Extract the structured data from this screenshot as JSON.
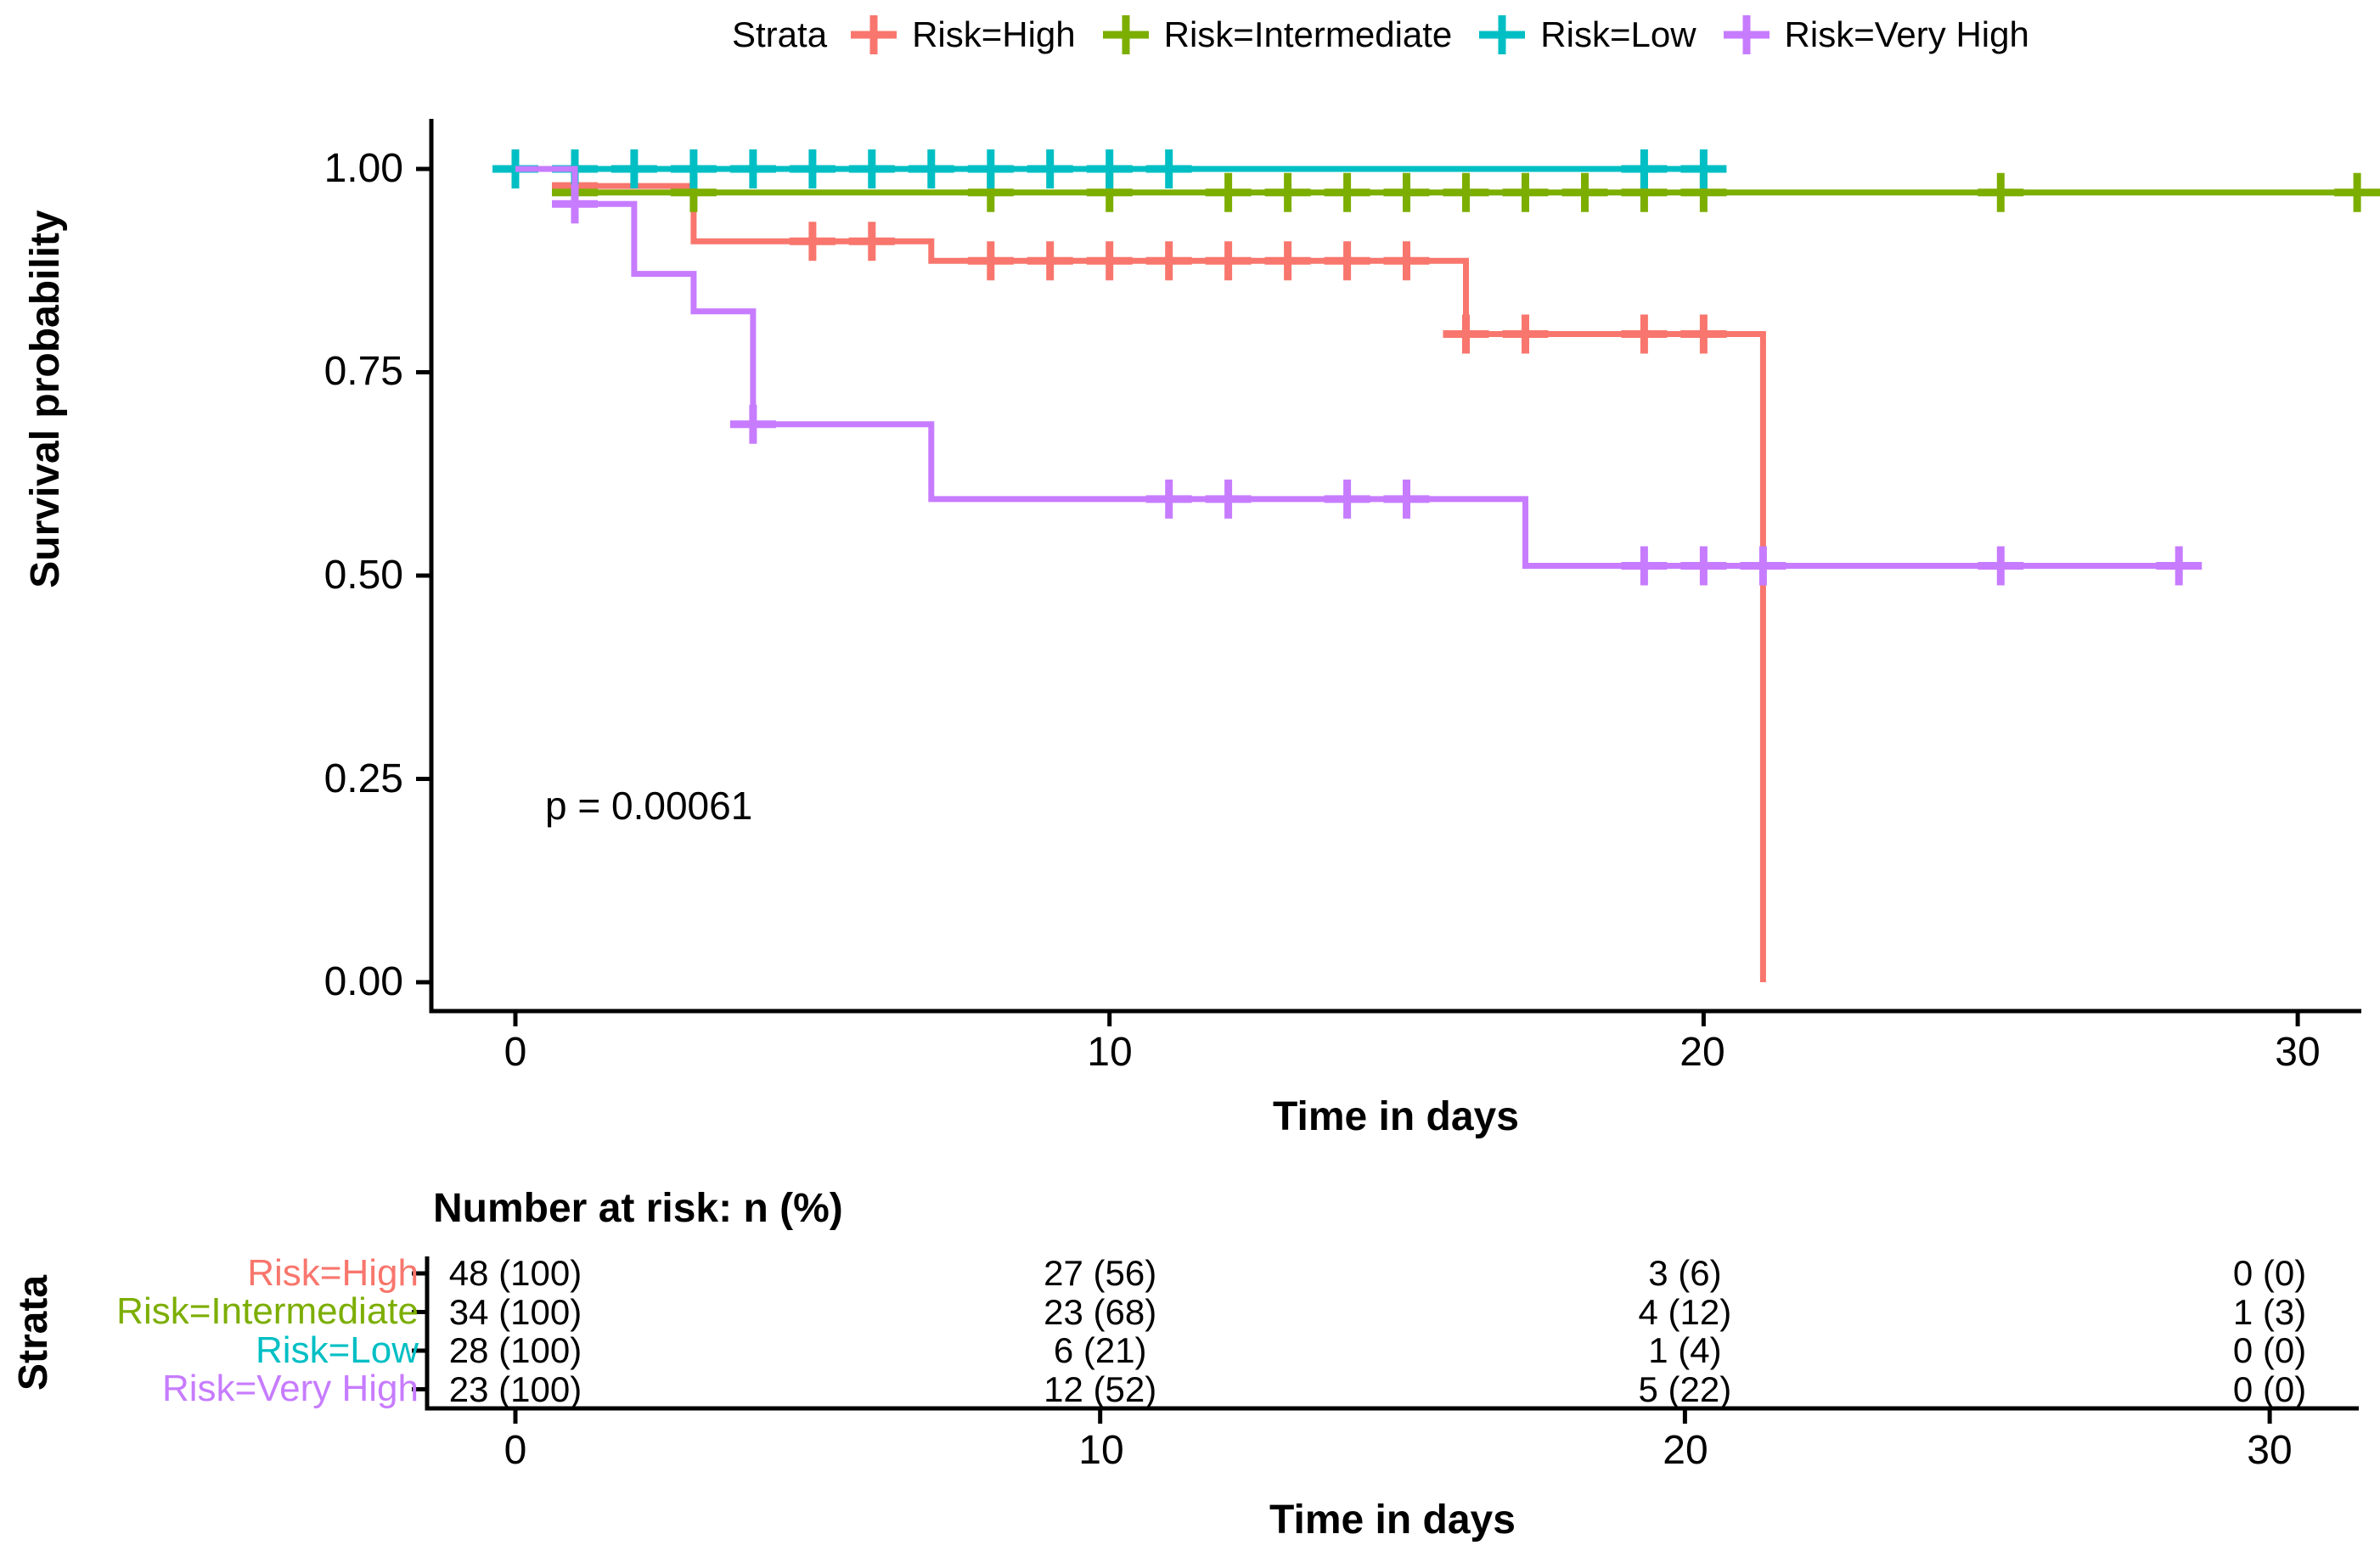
{
  "chart_data": {
    "type": "line",
    "subtype": "kaplan-meier-step-curves",
    "title": "",
    "xlabel": "Time in days",
    "ylabel": "Survival probability",
    "xlim": [
      0,
      31
    ],
    "ylim": [
      0.0,
      1.0
    ],
    "grid": false,
    "legend_position": "top",
    "legend_title": "Strata",
    "p_value": 0.00061,
    "p_value_label": "p = 0.00061",
    "x_ticks": [
      0,
      10,
      20,
      30
    ],
    "x_tick_labels": [
      "0",
      "10",
      "20",
      "30"
    ],
    "y_ticks": [
      1.0,
      0.75,
      0.5,
      0.25,
      0.0
    ],
    "y_tick_labels": [
      "1.00",
      "0.75",
      "0.50",
      "0.25",
      "0.00"
    ],
    "series": [
      {
        "name": "Risk=High",
        "color": "#F8766D",
        "steps": [
          [
            0,
            1.0
          ],
          [
            1,
            0.979
          ],
          [
            3,
            0.911
          ],
          [
            7,
            0.887
          ],
          [
            16,
            0.797
          ],
          [
            21,
            0.0
          ]
        ],
        "end_time": 21,
        "censor_times": [
          1,
          5,
          6,
          8,
          9,
          10,
          11,
          12,
          13,
          14,
          15,
          16,
          17,
          19,
          20
        ]
      },
      {
        "name": "Risk=Intermediate",
        "color": "#7CAE00",
        "steps": [
          [
            0,
            1.0
          ],
          [
            1,
            0.971
          ]
        ],
        "end_time": 31,
        "censor_times": [
          1,
          3,
          8,
          10,
          12,
          13,
          14,
          15,
          16,
          17,
          18,
          19,
          20,
          25,
          31
        ]
      },
      {
        "name": "Risk=Low",
        "color": "#00BFC4",
        "steps": [
          [
            0,
            1.0
          ]
        ],
        "end_time": 20,
        "censor_times": [
          0,
          1,
          2,
          3,
          4,
          5,
          6,
          7,
          8,
          9,
          10,
          11,
          19,
          20
        ]
      },
      {
        "name": "Risk=Very High",
        "color": "#C77CFF",
        "steps": [
          [
            0,
            1.0
          ],
          [
            1,
            0.957
          ],
          [
            2,
            0.871
          ],
          [
            3,
            0.825
          ],
          [
            4,
            0.686
          ],
          [
            7,
            0.594
          ],
          [
            17,
            0.512
          ]
        ],
        "end_time": 28,
        "censor_times": [
          1,
          4,
          11,
          12,
          14,
          15,
          19,
          20,
          21,
          25,
          28
        ]
      }
    ]
  },
  "risk_table": {
    "title": "Number at risk: n (%)",
    "ylabel": "Strata",
    "xlabel": "Time in days",
    "x_ticks": [
      0,
      10,
      20,
      30
    ],
    "x_tick_labels": [
      "0",
      "10",
      "20",
      "30"
    ],
    "rows": [
      {
        "label": "Risk=High",
        "values": [
          "48 (100)",
          "27 (56)",
          "3 (6)",
          "0 (0)"
        ]
      },
      {
        "label": "Risk=Intermediate",
        "values": [
          "34 (100)",
          "23 (68)",
          "4 (12)",
          "1 (3)"
        ]
      },
      {
        "label": "Risk=Low",
        "values": [
          "28 (100)",
          "6 (21)",
          "1 (4)",
          "0 (0)"
        ]
      },
      {
        "label": "Risk=Very High",
        "values": [
          "23 (100)",
          "12 (52)",
          "5 (22)",
          "0 (0)"
        ]
      }
    ]
  }
}
